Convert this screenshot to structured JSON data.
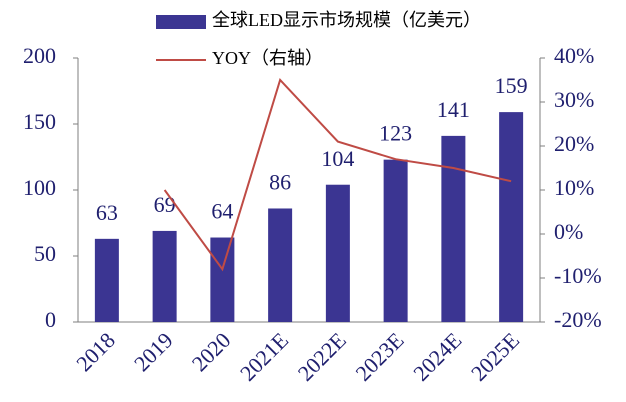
{
  "chart_data": {
    "type": "bar_line",
    "categories": [
      "2018",
      "2019",
      "2020",
      "2021E",
      "2022E",
      "2023E",
      "2024E",
      "2025E"
    ],
    "series": [
      {
        "name": "全球LED显示市场规模（亿美元）",
        "color": "#3b3592",
        "type": "bar",
        "values": [
          63,
          69,
          64,
          86,
          104,
          123,
          141,
          159
        ]
      },
      {
        "name": "YOY（右轴）",
        "color": "#bf4b45",
        "type": "line",
        "axis": "y2",
        "values": [
          null,
          10,
          -8,
          35,
          21,
          17,
          15,
          12
        ]
      }
    ],
    "ylim": [
      0,
      200
    ],
    "yticks": [
      0,
      50,
      100,
      150,
      200
    ],
    "y2lim": [
      -20,
      40
    ],
    "y2ticks": [
      {
        "value": -20,
        "label": "-20%"
      },
      {
        "value": -10,
        "label": "-10%"
      },
      {
        "value": 0,
        "label": "0%"
      },
      {
        "value": 10,
        "label": "10%"
      },
      {
        "value": 20,
        "label": "20%"
      },
      {
        "value": 30,
        "label": "30%"
      },
      {
        "value": 40,
        "label": "40%"
      }
    ],
    "legend": "top"
  }
}
